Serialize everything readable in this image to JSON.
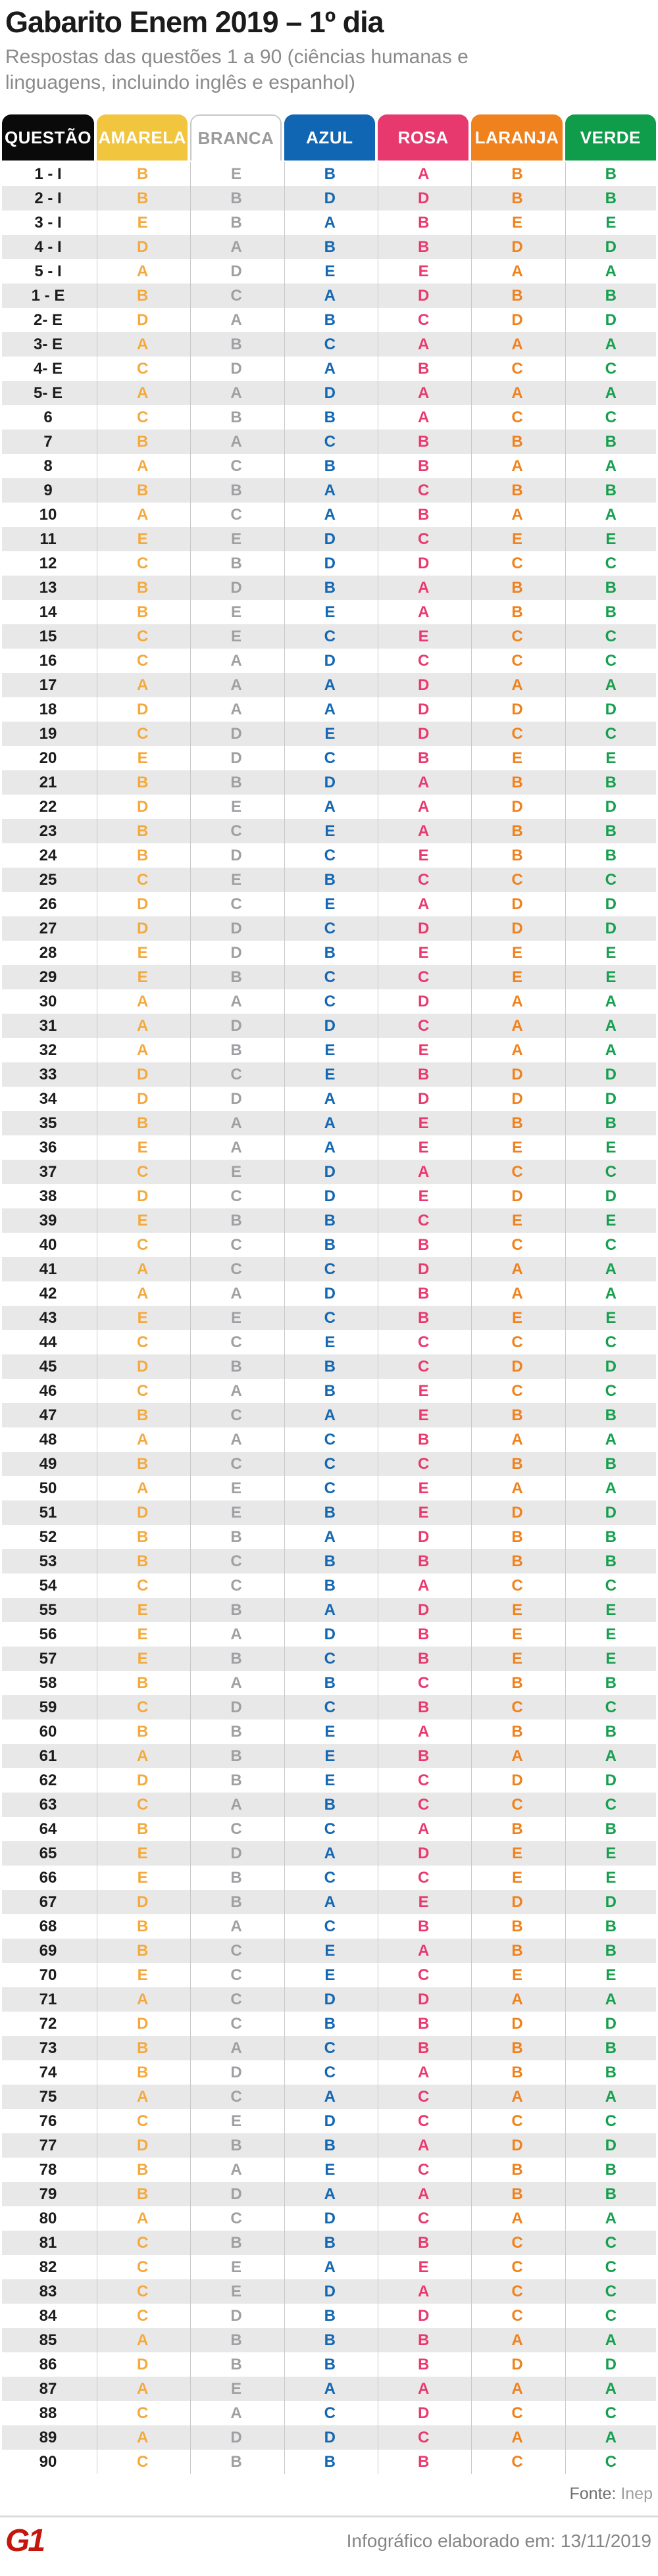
{
  "header": {
    "subtitle_line1": "Respostas das questões 1 a 90 (ciências humanas e",
    "subtitle_line2": "linguagens, incluindo inglês e espanhol)"
  },
  "chart_data": {
    "type": "table",
    "title": "Gabarito Enem 2019 – 1º dia",
    "columns": [
      {
        "key": "questao",
        "label": "QUESTÃO",
        "header_bg": "#0a0a0a",
        "header_text": "#ffffff",
        "value_color": "#1c1c1c"
      },
      {
        "key": "amarela",
        "label": "AMARELA",
        "header_bg": "#f2c53e",
        "header_text": "#ffffff",
        "value_color": "#f5a93c"
      },
      {
        "key": "branca",
        "label": "BRANCA",
        "header_bg": "#ffffff",
        "header_text": "#9b9b9b",
        "header_border": "#c7c7c7",
        "value_color": "#9ea0a3"
      },
      {
        "key": "azul",
        "label": "AZUL",
        "header_bg": "#1066b2",
        "header_text": "#ffffff",
        "value_color": "#1467b2"
      },
      {
        "key": "rosa",
        "label": "ROSA",
        "header_bg": "#e8396f",
        "header_text": "#ffffff",
        "value_color": "#e9396f"
      },
      {
        "key": "laranja",
        "label": "LARANJA",
        "header_bg": "#f0821e",
        "header_text": "#ffffff",
        "value_color": "#f0821e"
      },
      {
        "key": "verde",
        "label": "VERDE",
        "header_bg": "#0f9c4b",
        "header_text": "#ffffff",
        "value_color": "#16a04d"
      }
    ],
    "rows": [
      {
        "q": "1 - I",
        "a": [
          "B",
          "E",
          "B",
          "A",
          "B",
          "B"
        ]
      },
      {
        "q": "2 - I",
        "a": [
          "B",
          "B",
          "D",
          "D",
          "B",
          "B"
        ]
      },
      {
        "q": "3 - I",
        "a": [
          "E",
          "B",
          "A",
          "B",
          "E",
          "E"
        ]
      },
      {
        "q": "4 - I",
        "a": [
          "D",
          "A",
          "B",
          "B",
          "D",
          "D"
        ]
      },
      {
        "q": "5 - I",
        "a": [
          "A",
          "D",
          "E",
          "E",
          "A",
          "A"
        ]
      },
      {
        "q": "1 - E",
        "a": [
          "B",
          "C",
          "A",
          "D",
          "B",
          "B"
        ]
      },
      {
        "q": "2- E",
        "a": [
          "D",
          "A",
          "B",
          "C",
          "D",
          "D"
        ]
      },
      {
        "q": "3- E",
        "a": [
          "A",
          "B",
          "C",
          "A",
          "A",
          "A"
        ]
      },
      {
        "q": "4- E",
        "a": [
          "C",
          "D",
          "A",
          "B",
          "C",
          "C"
        ]
      },
      {
        "q": "5- E",
        "a": [
          "A",
          "A",
          "D",
          "A",
          "A",
          "A"
        ]
      },
      {
        "q": "6",
        "a": [
          "C",
          "B",
          "B",
          "A",
          "C",
          "C"
        ]
      },
      {
        "q": "7",
        "a": [
          "B",
          "A",
          "C",
          "B",
          "B",
          "B"
        ]
      },
      {
        "q": "8",
        "a": [
          "A",
          "C",
          "B",
          "B",
          "A",
          "A"
        ]
      },
      {
        "q": "9",
        "a": [
          "B",
          "B",
          "A",
          "C",
          "B",
          "B"
        ]
      },
      {
        "q": "10",
        "a": [
          "A",
          "C",
          "A",
          "B",
          "A",
          "A"
        ]
      },
      {
        "q": "11",
        "a": [
          "E",
          "E",
          "D",
          "C",
          "E",
          "E"
        ]
      },
      {
        "q": "12",
        "a": [
          "C",
          "B",
          "D",
          "D",
          "C",
          "C"
        ]
      },
      {
        "q": "13",
        "a": [
          "B",
          "D",
          "B",
          "A",
          "B",
          "B"
        ]
      },
      {
        "q": "14",
        "a": [
          "B",
          "E",
          "E",
          "A",
          "B",
          "B"
        ]
      },
      {
        "q": "15",
        "a": [
          "C",
          "E",
          "C",
          "E",
          "C",
          "C"
        ]
      },
      {
        "q": "16",
        "a": [
          "C",
          "A",
          "D",
          "C",
          "C",
          "C"
        ]
      },
      {
        "q": "17",
        "a": [
          "A",
          "A",
          "A",
          "D",
          "A",
          "A"
        ]
      },
      {
        "q": "18",
        "a": [
          "D",
          "A",
          "A",
          "D",
          "D",
          "D"
        ]
      },
      {
        "q": "19",
        "a": [
          "C",
          "D",
          "E",
          "D",
          "C",
          "C"
        ]
      },
      {
        "q": "20",
        "a": [
          "E",
          "D",
          "C",
          "B",
          "E",
          "E"
        ]
      },
      {
        "q": "21",
        "a": [
          "B",
          "B",
          "D",
          "A",
          "B",
          "B"
        ]
      },
      {
        "q": "22",
        "a": [
          "D",
          "E",
          "A",
          "A",
          "D",
          "D"
        ]
      },
      {
        "q": "23",
        "a": [
          "B",
          "C",
          "E",
          "A",
          "B",
          "B"
        ]
      },
      {
        "q": "24",
        "a": [
          "B",
          "D",
          "C",
          "E",
          "B",
          "B"
        ]
      },
      {
        "q": "25",
        "a": [
          "C",
          "E",
          "B",
          "C",
          "C",
          "C"
        ]
      },
      {
        "q": "26",
        "a": [
          "D",
          "C",
          "E",
          "A",
          "D",
          "D"
        ]
      },
      {
        "q": "27",
        "a": [
          "D",
          "D",
          "C",
          "D",
          "D",
          "D"
        ]
      },
      {
        "q": "28",
        "a": [
          "E",
          "D",
          "B",
          "E",
          "E",
          "E"
        ]
      },
      {
        "q": "29",
        "a": [
          "E",
          "B",
          "C",
          "C",
          "E",
          "E"
        ]
      },
      {
        "q": "30",
        "a": [
          "A",
          "A",
          "C",
          "D",
          "A",
          "A"
        ]
      },
      {
        "q": "31",
        "a": [
          "A",
          "D",
          "D",
          "C",
          "A",
          "A"
        ]
      },
      {
        "q": "32",
        "a": [
          "A",
          "B",
          "E",
          "E",
          "A",
          "A"
        ]
      },
      {
        "q": "33",
        "a": [
          "D",
          "C",
          "E",
          "B",
          "D",
          "D"
        ]
      },
      {
        "q": "34",
        "a": [
          "D",
          "D",
          "A",
          "D",
          "D",
          "D"
        ]
      },
      {
        "q": "35",
        "a": [
          "B",
          "A",
          "A",
          "E",
          "B",
          "B"
        ]
      },
      {
        "q": "36",
        "a": [
          "E",
          "A",
          "A",
          "E",
          "E",
          "E"
        ]
      },
      {
        "q": "37",
        "a": [
          "C",
          "E",
          "D",
          "A",
          "C",
          "C"
        ]
      },
      {
        "q": "38",
        "a": [
          "D",
          "C",
          "D",
          "E",
          "D",
          "D"
        ]
      },
      {
        "q": "39",
        "a": [
          "E",
          "B",
          "B",
          "C",
          "E",
          "E"
        ]
      },
      {
        "q": "40",
        "a": [
          "C",
          "C",
          "B",
          "B",
          "C",
          "C"
        ]
      },
      {
        "q": "41",
        "a": [
          "A",
          "C",
          "C",
          "D",
          "A",
          "A"
        ]
      },
      {
        "q": "42",
        "a": [
          "A",
          "A",
          "D",
          "B",
          "A",
          "A"
        ]
      },
      {
        "q": "43",
        "a": [
          "E",
          "E",
          "C",
          "B",
          "E",
          "E"
        ]
      },
      {
        "q": "44",
        "a": [
          "C",
          "C",
          "E",
          "C",
          "C",
          "C"
        ]
      },
      {
        "q": "45",
        "a": [
          "D",
          "B",
          "B",
          "C",
          "D",
          "D"
        ]
      },
      {
        "q": "46",
        "a": [
          "C",
          "A",
          "B",
          "E",
          "C",
          "C"
        ]
      },
      {
        "q": "47",
        "a": [
          "B",
          "C",
          "A",
          "E",
          "B",
          "B"
        ]
      },
      {
        "q": "48",
        "a": [
          "A",
          "A",
          "C",
          "B",
          "A",
          "A"
        ]
      },
      {
        "q": "49",
        "a": [
          "B",
          "C",
          "C",
          "C",
          "B",
          "B"
        ]
      },
      {
        "q": "50",
        "a": [
          "A",
          "E",
          "C",
          "E",
          "A",
          "A"
        ]
      },
      {
        "q": "51",
        "a": [
          "D",
          "E",
          "B",
          "E",
          "D",
          "D"
        ]
      },
      {
        "q": "52",
        "a": [
          "B",
          "B",
          "A",
          "D",
          "B",
          "B"
        ]
      },
      {
        "q": "53",
        "a": [
          "B",
          "C",
          "B",
          "B",
          "B",
          "B"
        ]
      },
      {
        "q": "54",
        "a": [
          "C",
          "C",
          "B",
          "A",
          "C",
          "C"
        ]
      },
      {
        "q": "55",
        "a": [
          "E",
          "B",
          "A",
          "D",
          "E",
          "E"
        ]
      },
      {
        "q": "56",
        "a": [
          "E",
          "A",
          "D",
          "B",
          "E",
          "E"
        ]
      },
      {
        "q": "57",
        "a": [
          "E",
          "B",
          "C",
          "B",
          "E",
          "E"
        ]
      },
      {
        "q": "58",
        "a": [
          "B",
          "A",
          "B",
          "C",
          "B",
          "B"
        ]
      },
      {
        "q": "59",
        "a": [
          "C",
          "D",
          "C",
          "B",
          "C",
          "C"
        ]
      },
      {
        "q": "60",
        "a": [
          "B",
          "B",
          "E",
          "A",
          "B",
          "B"
        ]
      },
      {
        "q": "61",
        "a": [
          "A",
          "B",
          "E",
          "B",
          "A",
          "A"
        ]
      },
      {
        "q": "62",
        "a": [
          "D",
          "B",
          "E",
          "C",
          "D",
          "D"
        ]
      },
      {
        "q": "63",
        "a": [
          "C",
          "A",
          "B",
          "C",
          "C",
          "C"
        ]
      },
      {
        "q": "64",
        "a": [
          "B",
          "C",
          "C",
          "A",
          "B",
          "B"
        ]
      },
      {
        "q": "65",
        "a": [
          "E",
          "D",
          "A",
          "D",
          "E",
          "E"
        ]
      },
      {
        "q": "66",
        "a": [
          "E",
          "B",
          "C",
          "C",
          "E",
          "E"
        ]
      },
      {
        "q": "67",
        "a": [
          "D",
          "B",
          "A",
          "E",
          "D",
          "D"
        ]
      },
      {
        "q": "68",
        "a": [
          "B",
          "A",
          "C",
          "B",
          "B",
          "B"
        ]
      },
      {
        "q": "69",
        "a": [
          "B",
          "C",
          "E",
          "A",
          "B",
          "B"
        ]
      },
      {
        "q": "70",
        "a": [
          "E",
          "C",
          "E",
          "C",
          "E",
          "E"
        ]
      },
      {
        "q": "71",
        "a": [
          "A",
          "C",
          "D",
          "D",
          "A",
          "A"
        ]
      },
      {
        "q": "72",
        "a": [
          "D",
          "C",
          "B",
          "B",
          "D",
          "D"
        ]
      },
      {
        "q": "73",
        "a": [
          "B",
          "A",
          "C",
          "B",
          "B",
          "B"
        ]
      },
      {
        "q": "74",
        "a": [
          "B",
          "D",
          "C",
          "A",
          "B",
          "B"
        ]
      },
      {
        "q": "75",
        "a": [
          "A",
          "C",
          "A",
          "C",
          "A",
          "A"
        ]
      },
      {
        "q": "76",
        "a": [
          "C",
          "E",
          "D",
          "C",
          "C",
          "C"
        ]
      },
      {
        "q": "77",
        "a": [
          "D",
          "B",
          "B",
          "A",
          "D",
          "D"
        ]
      },
      {
        "q": "78",
        "a": [
          "B",
          "A",
          "E",
          "C",
          "B",
          "B"
        ]
      },
      {
        "q": "79",
        "a": [
          "B",
          "D",
          "A",
          "A",
          "B",
          "B"
        ]
      },
      {
        "q": "80",
        "a": [
          "A",
          "C",
          "D",
          "C",
          "A",
          "A"
        ]
      },
      {
        "q": "81",
        "a": [
          "C",
          "B",
          "B",
          "B",
          "C",
          "C"
        ]
      },
      {
        "q": "82",
        "a": [
          "C",
          "E",
          "A",
          "E",
          "C",
          "C"
        ]
      },
      {
        "q": "83",
        "a": [
          "C",
          "E",
          "D",
          "A",
          "C",
          "C"
        ]
      },
      {
        "q": "84",
        "a": [
          "C",
          "D",
          "B",
          "D",
          "C",
          "C"
        ]
      },
      {
        "q": "85",
        "a": [
          "A",
          "B",
          "B",
          "B",
          "A",
          "A"
        ]
      },
      {
        "q": "86",
        "a": [
          "D",
          "B",
          "B",
          "B",
          "D",
          "D"
        ]
      },
      {
        "q": "87",
        "a": [
          "A",
          "E",
          "A",
          "A",
          "A",
          "A"
        ]
      },
      {
        "q": "88",
        "a": [
          "C",
          "A",
          "C",
          "D",
          "C",
          "C"
        ]
      },
      {
        "q": "89",
        "a": [
          "A",
          "D",
          "D",
          "C",
          "A",
          "A"
        ]
      },
      {
        "q": "90",
        "a": [
          "C",
          "B",
          "B",
          "B",
          "C",
          "C"
        ]
      }
    ],
    "legend_position": "top",
    "grid": "row-stripes"
  },
  "footer": {
    "source_label": "Fonte:",
    "source_value": "Inep",
    "logo": "G1",
    "logo_color": "#c4160c",
    "credit": "Infográfico elaborado em: 13/11/2019"
  }
}
